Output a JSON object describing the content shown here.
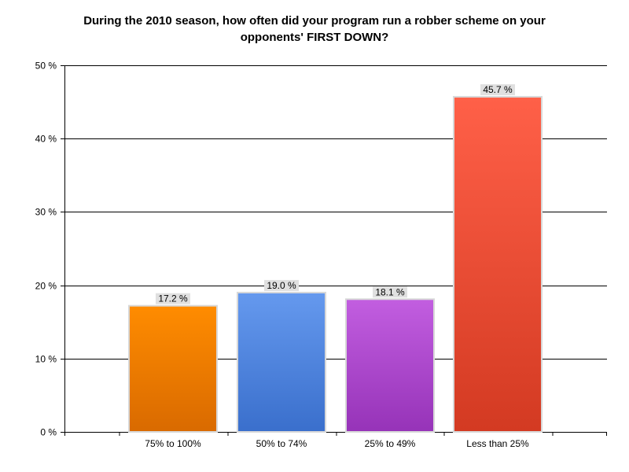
{
  "chart_data": {
    "type": "bar",
    "title": "During the 2010 season, how often did your program run a robber scheme on your\nopponents' FIRST DOWN?",
    "categories": [
      "75% to 100%",
      "50% to 74%",
      "25% to 49%",
      "Less than 25%"
    ],
    "values": [
      17.2,
      19.0,
      18.1,
      45.7
    ],
    "data_labels": [
      "17.2 %",
      "19.0 %",
      "18.1 %",
      "45.7 %"
    ],
    "y_ticks": [
      0,
      10,
      20,
      30,
      40,
      50
    ],
    "y_tick_labels": [
      "0 %",
      "10 %",
      "20 %",
      "30 %",
      "40 %",
      "50 %"
    ],
    "ylim": [
      0,
      50
    ],
    "grid": true,
    "legend": "none",
    "bar_colors": [
      {
        "top": "#ff8c00",
        "bottom": "#d96a00"
      },
      {
        "top": "#6599ee",
        "bottom": "#3a6fcc"
      },
      {
        "top": "#c25ee0",
        "bottom": "#9633b8"
      },
      {
        "top": "#ff6048",
        "bottom": "#d33a22"
      }
    ]
  }
}
